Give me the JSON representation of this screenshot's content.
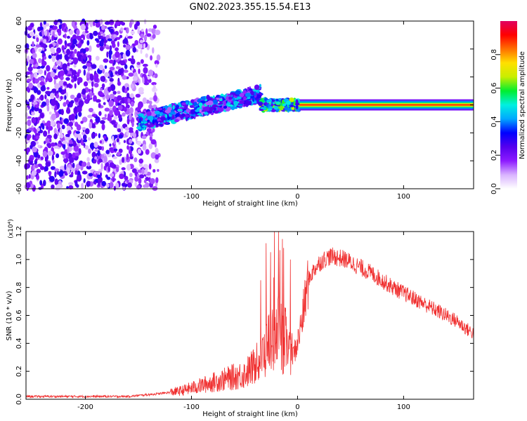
{
  "title": "GN02.2023.355.15.54.E13",
  "chart_data": [
    {
      "type": "heatmap",
      "title": "GN02.2023.355.15.54.E13",
      "xlabel": "Height of straight line (km)",
      "ylabel": "Frequency (Hz)",
      "xlim": [
        -256,
        166
      ],
      "ylim": [
        -60,
        60
      ],
      "x_ticks": [
        -200,
        -100,
        0,
        100
      ],
      "y_ticks": [
        -60,
        -40,
        -20,
        0,
        20,
        40,
        60
      ],
      "grid": false,
      "colorbar": {
        "label": "Normalized spectral amplitude",
        "range": [
          0,
          1
        ],
        "ticks": [
          "0.0",
          "0.2",
          "0.4",
          "0.6",
          "0.8"
        ],
        "colormap": [
          "#ffffff",
          "#d9b3ff",
          "#8c1aff",
          "#5500ee",
          "#0000ff",
          "#00a8ff",
          "#00f0e0",
          "#00ee30",
          "#c8ee00",
          "#ffe000",
          "#ff7000",
          "#ff0000",
          "#e00060"
        ]
      },
      "regions": [
        {
          "name": "noise",
          "x_range": [
            -256,
            -130
          ],
          "freq_range": [
            -60,
            60
          ],
          "amplitude": 0.15
        },
        {
          "name": "onset",
          "x_range": [
            -150,
            -35
          ],
          "center_freq_start": -12,
          "center_freq_end": 8,
          "spread_hz": 12,
          "amplitude": 0.3
        },
        {
          "name": "transition",
          "x_range": [
            -35,
            2
          ],
          "center_freq": 0,
          "spread_hz": 8,
          "amplitude": 0.45
        },
        {
          "name": "carrier",
          "x_range": [
            2,
            166
          ],
          "center_freq": 0,
          "spread_hz": 4,
          "amplitude": 0.9
        }
      ]
    },
    {
      "type": "line",
      "xlabel": "Height of straight line (km)",
      "ylabel": "SNR (10 * v/v)",
      "y_multiplier": "(x10⁴)",
      "xlim": [
        -256,
        166
      ],
      "ylim": [
        0.0,
        1.2
      ],
      "x_ticks": [
        -200,
        -100,
        0,
        100
      ],
      "y_ticks": [
        "0.0",
        "0.2",
        "0.4",
        "0.6",
        "0.8",
        "1.0",
        "1.2"
      ],
      "grid": false,
      "series": [
        {
          "color": "#f03030",
          "x": [
            -256,
            -200,
            -160,
            -130,
            -110,
            -100,
            -90,
            -80,
            -70,
            -60,
            -50,
            -40,
            -35,
            -30,
            -25,
            -20,
            -15,
            -10,
            -5,
            0,
            5,
            10,
            15,
            20,
            25,
            30,
            35,
            40,
            45,
            50,
            60,
            70,
            80,
            90,
            100,
            110,
            120,
            130,
            140,
            150,
            160,
            166
          ],
          "values": [
            0.02,
            0.02,
            0.02,
            0.04,
            0.06,
            0.08,
            0.1,
            0.12,
            0.14,
            0.16,
            0.18,
            0.24,
            0.28,
            0.36,
            0.44,
            0.5,
            0.45,
            0.4,
            0.3,
            0.4,
            0.6,
            0.85,
            0.92,
            0.97,
            1.0,
            1.02,
            1.02,
            1.01,
            1.0,
            0.98,
            0.94,
            0.9,
            0.85,
            0.8,
            0.76,
            0.72,
            0.68,
            0.64,
            0.6,
            0.56,
            0.5,
            0.47
          ]
        }
      ]
    }
  ]
}
